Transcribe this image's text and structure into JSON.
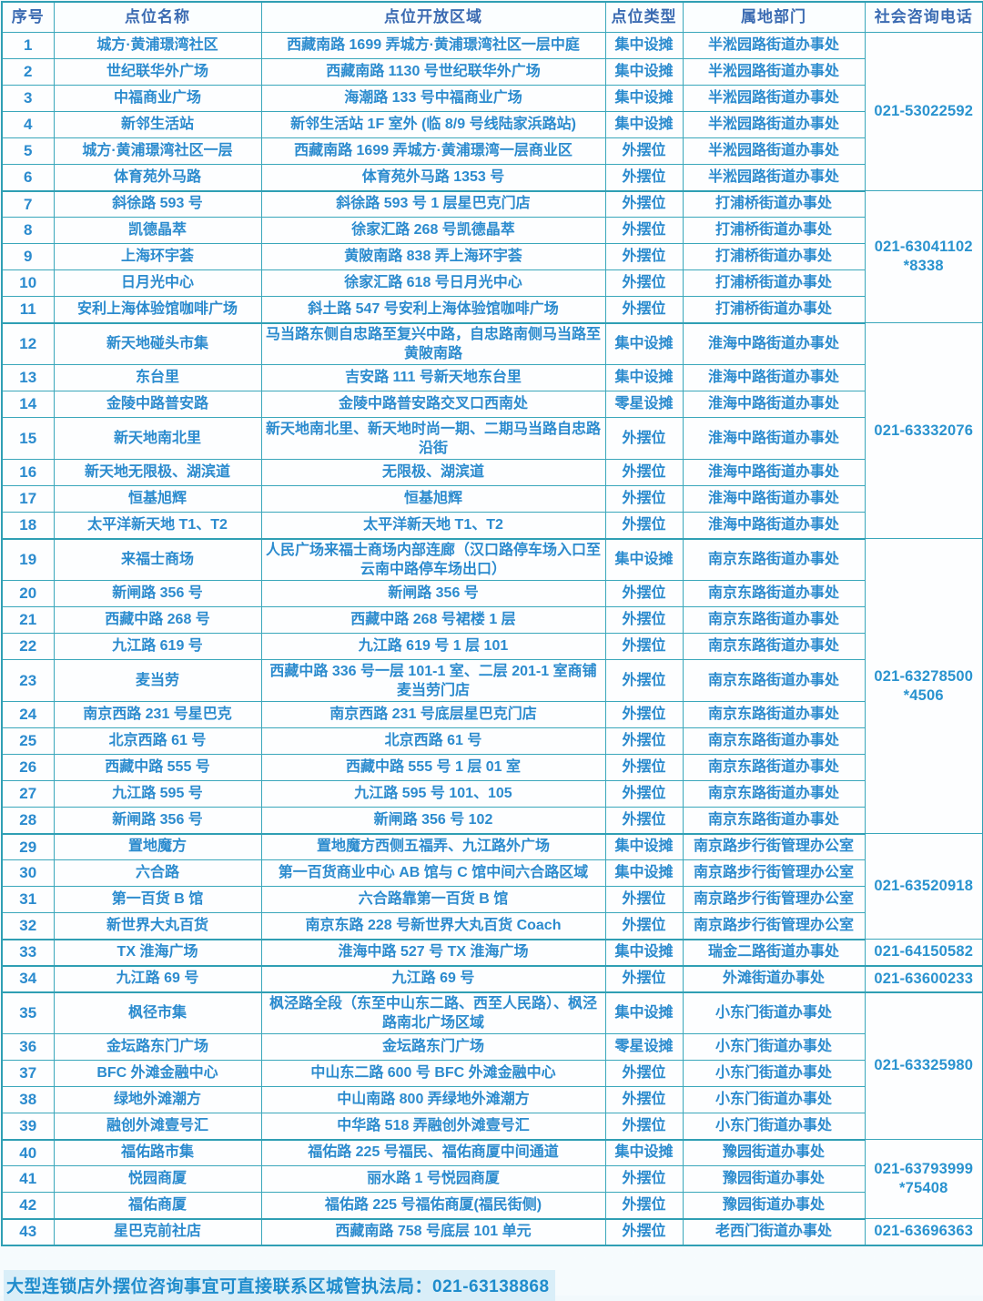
{
  "table": {
    "headers": [
      "序号",
      "点位名称",
      "点位开放区域",
      "点位类型",
      "属地部门",
      "社会咨询电话"
    ],
    "rows": [
      {
        "no": "1",
        "name": "城方·黄浦璟湾社区",
        "area": "西藏南路 1699 弄城方·黄浦璟湾社区一层中庭",
        "type": "集中设摊",
        "dept": "半淞园路街道办事处",
        "tall": false
      },
      {
        "no": "2",
        "name": "世纪联华外广场",
        "area": "西藏南路 1130 号世纪联华外广场",
        "type": "集中设摊",
        "dept": "半淞园路街道办事处",
        "tall": false
      },
      {
        "no": "3",
        "name": "中福商业广场",
        "area": "海潮路 133 号中福商业广场",
        "type": "集中设摊",
        "dept": "半淞园路街道办事处",
        "tall": false
      },
      {
        "no": "4",
        "name": "新邻生活站",
        "area": "新邻生活站 1F 室外 (临 8/9 号线陆家浜路站)",
        "type": "集中设摊",
        "dept": "半淞园路街道办事处",
        "tall": false
      },
      {
        "no": "5",
        "name": "城方·黄浦璟湾社区一层",
        "area": "西藏南路 1699 弄城方·黄浦璟湾一层商业区",
        "type": "外摆位",
        "dept": "半淞园路街道办事处",
        "tall": false
      },
      {
        "no": "6",
        "name": "体育苑外马路",
        "area": "体育苑外马路 1353 号",
        "type": "外摆位",
        "dept": "半淞园路街道办事处",
        "tall": false
      },
      {
        "no": "7",
        "name": "斜徐路 593 号",
        "area": "斜徐路 593 号 1 层星巴克门店",
        "type": "外摆位",
        "dept": "打浦桥街道办事处",
        "tall": false
      },
      {
        "no": "8",
        "name": "凯德晶萃",
        "area": "徐家汇路 268 号凯德晶萃",
        "type": "外摆位",
        "dept": "打浦桥街道办事处",
        "tall": false
      },
      {
        "no": "9",
        "name": "上海环宇荟",
        "area": "黄陂南路 838 弄上海环宇荟",
        "type": "外摆位",
        "dept": "打浦桥街道办事处",
        "tall": false
      },
      {
        "no": "10",
        "name": "日月光中心",
        "area": "徐家汇路 618 号日月光中心",
        "type": "外摆位",
        "dept": "打浦桥街道办事处",
        "tall": false
      },
      {
        "no": "11",
        "name": "安利上海体验馆咖啡广场",
        "area": "斜土路 547 号安利上海体验馆咖啡广场",
        "type": "外摆位",
        "dept": "打浦桥街道办事处",
        "tall": false
      },
      {
        "no": "12",
        "name": "新天地碰头市集",
        "area": "马当路东侧自忠路至复兴中路，自忠路南侧马当路至黄陂南路",
        "type": "集中设摊",
        "dept": "淮海中路街道办事处",
        "tall": true
      },
      {
        "no": "13",
        "name": "东台里",
        "area": "吉安路 111 号新天地东台里",
        "type": "集中设摊",
        "dept": "淮海中路街道办事处",
        "tall": false
      },
      {
        "no": "14",
        "name": "金陵中路普安路",
        "area": "金陵中路普安路交叉口西南处",
        "type": "零星设摊",
        "dept": "淮海中路街道办事处",
        "tall": false
      },
      {
        "no": "15",
        "name": "新天地南北里",
        "area": "新天地南北里、新天地时尚一期、二期马当路自忠路沿街",
        "type": "外摆位",
        "dept": "淮海中路街道办事处",
        "tall": true
      },
      {
        "no": "16",
        "name": "新天地无限极、湖滨道",
        "area": "无限极、湖滨道",
        "type": "外摆位",
        "dept": "淮海中路街道办事处",
        "tall": false
      },
      {
        "no": "17",
        "name": "恒基旭辉",
        "area": "恒基旭辉",
        "type": "外摆位",
        "dept": "淮海中路街道办事处",
        "tall": false
      },
      {
        "no": "18",
        "name": "太平洋新天地 T1、T2",
        "area": "太平洋新天地 T1、T2",
        "type": "外摆位",
        "dept": "淮海中路街道办事处",
        "tall": false
      },
      {
        "no": "19",
        "name": "来福士商场",
        "area": "人民广场来福士商场内部连廊（汉口路停车场入口至云南中路停车场出口）",
        "type": "集中设摊",
        "dept": "南京东路街道办事处",
        "tall": true
      },
      {
        "no": "20",
        "name": "新闸路 356 号",
        "area": "新闸路 356 号",
        "type": "外摆位",
        "dept": "南京东路街道办事处",
        "tall": false
      },
      {
        "no": "21",
        "name": "西藏中路 268 号",
        "area": "西藏中路 268 号裙楼 1 层",
        "type": "外摆位",
        "dept": "南京东路街道办事处",
        "tall": false
      },
      {
        "no": "22",
        "name": "九江路 619 号",
        "area": "九江路 619 号 1 层 101",
        "type": "外摆位",
        "dept": "南京东路街道办事处",
        "tall": false
      },
      {
        "no": "23",
        "name": "麦当劳",
        "area": "西藏中路 336 号一层 101-1 室、二层 201-1 室商铺麦当劳门店",
        "type": "外摆位",
        "dept": "南京东路街道办事处",
        "tall": true
      },
      {
        "no": "24",
        "name": "南京西路 231 号星巴克",
        "area": "南京西路 231 号底层星巴克门店",
        "type": "外摆位",
        "dept": "南京东路街道办事处",
        "tall": false
      },
      {
        "no": "25",
        "name": "北京西路 61 号",
        "area": "北京西路 61 号",
        "type": "外摆位",
        "dept": "南京东路街道办事处",
        "tall": false
      },
      {
        "no": "26",
        "name": "西藏中路 555 号",
        "area": "西藏中路 555 号 1 层 01 室",
        "type": "外摆位",
        "dept": "南京东路街道办事处",
        "tall": false
      },
      {
        "no": "27",
        "name": "九江路 595 号",
        "area": "九江路 595 号 101、105",
        "type": "外摆位",
        "dept": "南京东路街道办事处",
        "tall": false
      },
      {
        "no": "28",
        "name": "新闸路 356 号",
        "area": "新闸路 356 号 102",
        "type": "外摆位",
        "dept": "南京东路街道办事处",
        "tall": false
      },
      {
        "no": "29",
        "name": "置地魔方",
        "area": "置地魔方西侧五福弄、九江路外广场",
        "type": "集中设摊",
        "dept": "南京路步行街管理办公室",
        "tall": false
      },
      {
        "no": "30",
        "name": "六合路",
        "area": "第一百货商业中心 AB 馆与 C 馆中间六合路区域",
        "type": "集中设摊",
        "dept": "南京路步行街管理办公室",
        "tall": false
      },
      {
        "no": "31",
        "name": "第一百货 B 馆",
        "area": "六合路靠第一百货 B 馆",
        "type": "外摆位",
        "dept": "南京路步行街管理办公室",
        "tall": false
      },
      {
        "no": "32",
        "name": "新世界大丸百货",
        "area": "南京东路 228 号新世界大丸百货 Coach",
        "type": "外摆位",
        "dept": "南京路步行街管理办公室",
        "tall": false
      },
      {
        "no": "33",
        "name": "TX 淮海广场",
        "area": "淮海中路 527 号 TX 淮海广场",
        "type": "集中设摊",
        "dept": "瑞金二路街道办事处",
        "tall": false
      },
      {
        "no": "34",
        "name": "九江路 69 号",
        "area": "九江路 69 号",
        "type": "外摆位",
        "dept": "外滩街道办事处",
        "tall": false
      },
      {
        "no": "35",
        "name": "枫径市集",
        "area": "枫泾路全段（东至中山东二路、西至人民路）、枫泾路南北广场区域",
        "type": "集中设摊",
        "dept": "小东门街道办事处",
        "tall": true
      },
      {
        "no": "36",
        "name": "金坛路东门广场",
        "area": "金坛路东门广场",
        "type": "零星设摊",
        "dept": "小东门街道办事处",
        "tall": false
      },
      {
        "no": "37",
        "name": "BFC 外滩金融中心",
        "area": "中山东二路 600 号 BFC 外滩金融中心",
        "type": "外摆位",
        "dept": "小东门街道办事处",
        "tall": false
      },
      {
        "no": "38",
        "name": "绿地外滩潮方",
        "area": "中山南路 800 弄绿地外滩潮方",
        "type": "外摆位",
        "dept": "小东门街道办事处",
        "tall": false
      },
      {
        "no": "39",
        "name": "融创外滩壹号汇",
        "area": "中华路 518 弄融创外滩壹号汇",
        "type": "外摆位",
        "dept": "小东门街道办事处",
        "tall": false
      },
      {
        "no": "40",
        "name": "福佑路市集",
        "area": "福佑路 225 号福民、福佑商厦中间通道",
        "type": "集中设摊",
        "dept": "豫园街道办事处",
        "tall": false
      },
      {
        "no": "41",
        "name": "悦园商厦",
        "area": "丽水路 1 号悦园商厦",
        "type": "外摆位",
        "dept": "豫园街道办事处",
        "tall": false
      },
      {
        "no": "42",
        "name": "福佑商厦",
        "area": "福佑路 225 号福佑商厦(福民街侧)",
        "type": "外摆位",
        "dept": "豫园街道办事处",
        "tall": false
      },
      {
        "no": "43",
        "name": "星巴克前社店",
        "area": "西藏南路 758 号底层 101 单元",
        "type": "外摆位",
        "dept": "老西门街道办事处",
        "tall": false
      }
    ],
    "phone_groups": [
      {
        "start": 1,
        "end": 6,
        "phone": "021-53022592"
      },
      {
        "start": 7,
        "end": 11,
        "phone": "021-63041102\n*8338"
      },
      {
        "start": 12,
        "end": 18,
        "phone": "021-63332076"
      },
      {
        "start": 19,
        "end": 28,
        "phone": "021-63278500\n*4506"
      },
      {
        "start": 29,
        "end": 32,
        "phone": "021-63520918"
      },
      {
        "start": 33,
        "end": 33,
        "phone": "021-64150582"
      },
      {
        "start": 34,
        "end": 34,
        "phone": "021-63600233"
      },
      {
        "start": 35,
        "end": 39,
        "phone": "021-63325980"
      },
      {
        "start": 40,
        "end": 42,
        "phone": "021-63793999\n*75408"
      },
      {
        "start": 43,
        "end": 43,
        "phone": "021-63696363"
      }
    ]
  },
  "footer": {
    "note": "大型连锁店外摆位咨询事宜可直接联系区城管执法局：021-63138868"
  },
  "colors": {
    "border": "#3aa7bb",
    "header_text": "#3b6bb2",
    "body_text": "#2b8bce",
    "footer_text": "#1f8ccc",
    "footer_highlight": "#d9eef8"
  }
}
